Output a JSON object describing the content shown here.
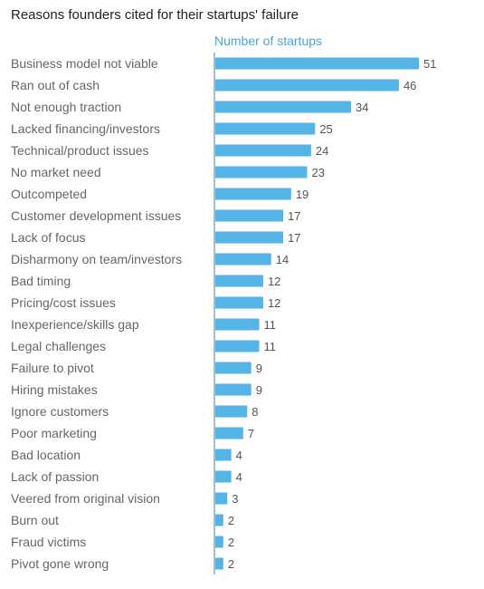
{
  "title": "Reasons founders cited for their startups' failure",
  "colors": {
    "bar": "#55b4e6",
    "axis": "#4a7f9c",
    "series_label": "#4aa3d8"
  },
  "chart_data": {
    "type": "bar",
    "orientation": "horizontal",
    "title": "Reasons founders cited for their startups' failure",
    "xlabel": "Number of startups",
    "xlim": [
      0,
      51
    ],
    "grid": false,
    "categories": [
      "Business model not viable",
      "Ran out of cash",
      "Not enough traction",
      "Lacked financing/investors",
      "Technical/product issues",
      "No market need",
      "Outcompeted",
      "Customer development issues",
      "Lack of focus",
      "Disharmony on team/investors",
      "Bad timing",
      "Pricing/cost issues",
      "Inexperience/skills gap",
      "Legal challenges",
      "Failure to pivot",
      "Hiring mistakes",
      "Ignore customers",
      "Poor marketing",
      "Bad location",
      "Lack of passion",
      "Veered from original vision",
      "Burn out",
      "Fraud victims",
      "Pivot gone wrong"
    ],
    "values": [
      51,
      46,
      34,
      25,
      24,
      23,
      19,
      17,
      17,
      14,
      12,
      12,
      11,
      11,
      9,
      9,
      8,
      7,
      4,
      4,
      3,
      2,
      2,
      2
    ]
  }
}
